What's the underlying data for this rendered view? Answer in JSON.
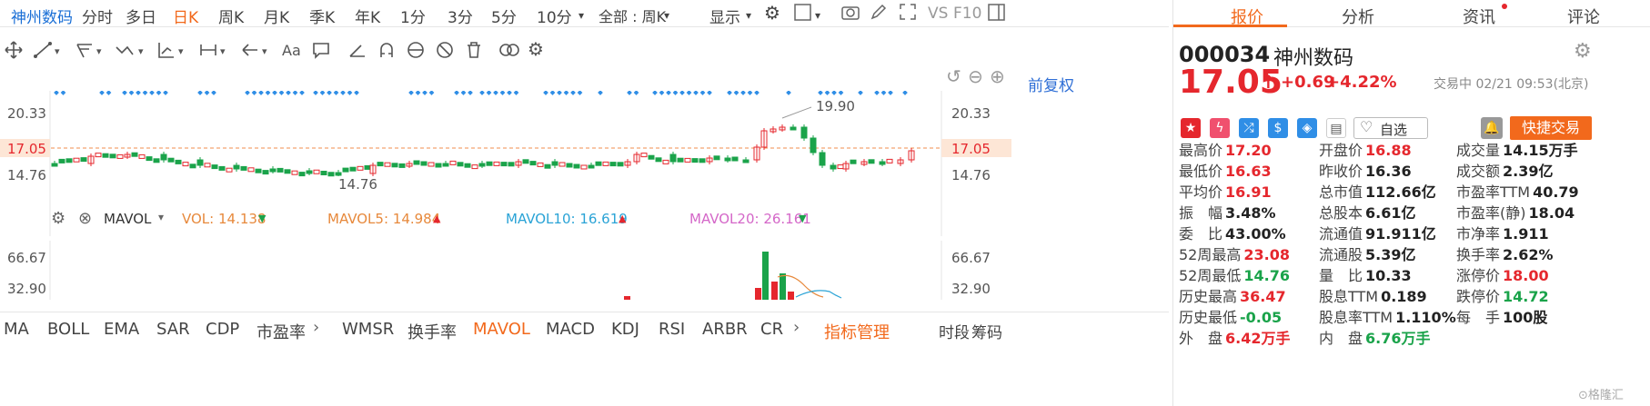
{
  "topbar": {
    "stock_name": "神州数码",
    "periods": [
      "分时",
      "多日",
      "日K",
      "周K",
      "月K",
      "季K",
      "年K",
      "1分",
      "3分",
      "5分",
      "10分"
    ],
    "active_period": "日K",
    "range_select": "全部 : 周K",
    "display_label": "显示",
    "vs_label": "VS",
    "f10_label": "F10"
  },
  "chart": {
    "adjust_label": "前复权",
    "price_ticks": [
      "20.33",
      "17.05",
      "14.76"
    ],
    "right_ticks": [
      "20.33",
      "17.05",
      "14.76"
    ],
    "high_annotation": "19.90",
    "low_annotation": "14.76",
    "current_price_line": "17.05"
  },
  "volume_legend": {
    "indicator": "MAVOL",
    "vol_label": "VOL: 14.138",
    "mavol5_label": "MAVOL5: 14.984",
    "mavol10_label": "MAVOL10: 16.619",
    "mavol20_label": "MAVOL20: 26.161",
    "left_ticks": [
      "66.67",
      "32.90"
    ],
    "right_ticks": [
      "66.67",
      "32.90"
    ]
  },
  "indicators": {
    "items": [
      "MA",
      "BOLL",
      "EMA",
      "SAR",
      "CDP",
      "市盈率",
      "WMSR",
      "换手率",
      "MAVOL",
      "MACD",
      "KDJ",
      "RSI",
      "ARBR",
      "CR"
    ],
    "active": "MAVOL",
    "manage_label": "指标管理",
    "timeshare_label": "时段",
    "chip_label": "筹码"
  },
  "right_panel": {
    "tabs": [
      "报价",
      "分析",
      "资讯",
      "评论"
    ],
    "active_tab": "报价",
    "code": "000034",
    "name": "神州数码",
    "price": "17.05",
    "change": "+0.69",
    "change_pct": "+4.22%",
    "status": "交易中 02/21 09:53(北京)",
    "watch_label": "自选",
    "trade_label": "快捷交易",
    "quotes": [
      {
        "k": "最高价",
        "v": "17.20",
        "c": "red"
      },
      {
        "k": "开盘价",
        "v": "16.88",
        "c": "red"
      },
      {
        "k": "成交量",
        "v": "14.15万手",
        "c": "dark"
      },
      {
        "k": "最低价",
        "v": "16.63",
        "c": "red"
      },
      {
        "k": "昨收价",
        "v": "16.36",
        "c": "dark"
      },
      {
        "k": "成交额",
        "v": "2.39亿",
        "c": "dark"
      },
      {
        "k": "平均价",
        "v": "16.91",
        "c": "red"
      },
      {
        "k": "总市值",
        "v": "112.66亿",
        "c": "dark"
      },
      {
        "k": "市盈率TTM",
        "v": "40.79",
        "c": "dark"
      },
      {
        "k": "振　幅",
        "v": "3.48%",
        "c": "dark"
      },
      {
        "k": "总股本",
        "v": "6.61亿",
        "c": "dark"
      },
      {
        "k": "市盈率(静)",
        "v": "18.04",
        "c": "dark"
      },
      {
        "k": "委　比",
        "v": "43.00%",
        "c": "dark"
      },
      {
        "k": "流通值",
        "v": "91.911亿",
        "c": "dark"
      },
      {
        "k": "市净率",
        "v": "1.911",
        "c": "dark"
      },
      {
        "k": "52周最高",
        "v": "23.08",
        "c": "red"
      },
      {
        "k": "流通股",
        "v": "5.39亿",
        "c": "dark"
      },
      {
        "k": "换手率",
        "v": "2.62%",
        "c": "dark"
      },
      {
        "k": "52周最低",
        "v": "14.76",
        "c": "green"
      },
      {
        "k": "量　比",
        "v": "10.33",
        "c": "dark"
      },
      {
        "k": "涨停价",
        "v": "18.00",
        "c": "red"
      },
      {
        "k": "历史最高",
        "v": "36.47",
        "c": "red"
      },
      {
        "k": "股息TTM",
        "v": "0.189",
        "c": "dark"
      },
      {
        "k": "跌停价",
        "v": "14.72",
        "c": "green"
      },
      {
        "k": "历史最低",
        "v": "-0.05",
        "c": "green"
      },
      {
        "k": "股息率TTM",
        "v": "1.110%",
        "c": "dark"
      },
      {
        "k": "每　手",
        "v": "100股",
        "c": "dark"
      },
      {
        "k": "外　盘",
        "v": "6.42万手",
        "c": "red"
      },
      {
        "k": "内　盘",
        "v": "6.76万手",
        "c": "green"
      }
    ]
  },
  "colors": {
    "accent": "#f2691c",
    "up": "#e5272d",
    "down": "#1aa34a",
    "link": "#2f6fd6"
  }
}
